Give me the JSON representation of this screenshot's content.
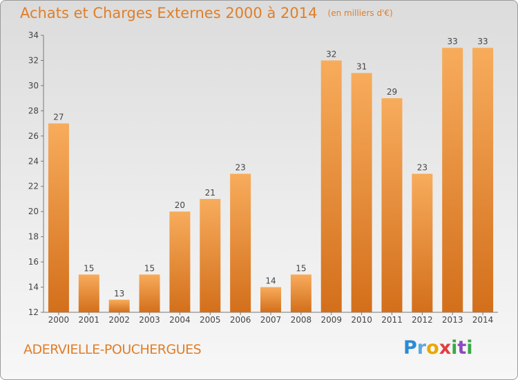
{
  "header": {
    "title": "Achats et Charges Externes 2000 à 2014",
    "unit": "(en milliers d'€)"
  },
  "footer": {
    "commune": "ADERVIELLE-POUCHERGUES",
    "logo_letters": [
      "P",
      "r",
      "o",
      "x",
      "i",
      "t",
      "i"
    ],
    "logo_colors": [
      "#2b8ad6",
      "#5aa8e0",
      "#e8a800",
      "#e04040",
      "#3aa84a",
      "#8c4bbf",
      "#3aa84a"
    ]
  },
  "colors": {
    "bar_light": "#f7ac5c",
    "bar_dark": "#d36f1b",
    "title": "#e07e28"
  },
  "chart_data": {
    "type": "bar",
    "categories": [
      "2000",
      "2001",
      "2002",
      "2003",
      "2004",
      "2005",
      "2006",
      "2007",
      "2008",
      "2009",
      "2010",
      "2011",
      "2012",
      "2013",
      "2014"
    ],
    "values": [
      27,
      15,
      13,
      15,
      20,
      21,
      23,
      14,
      15,
      32,
      31,
      29,
      23,
      33,
      33
    ],
    "yticks": [
      12,
      14,
      16,
      18,
      20,
      22,
      24,
      26,
      28,
      30,
      32,
      34
    ],
    "ylim": [
      12,
      34
    ],
    "grid": false,
    "data_labels": true
  }
}
